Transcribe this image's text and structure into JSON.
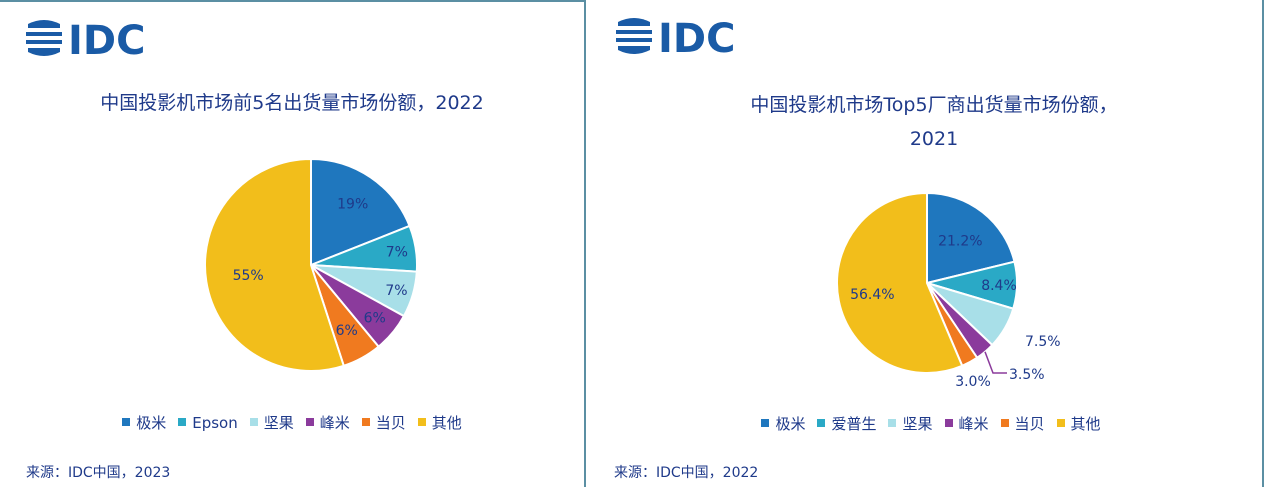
{
  "brand": {
    "logo_text": "IDC",
    "logo_color": "#1a5ba6"
  },
  "colors": {
    "极米": "#1f77be",
    "Epson": "#2aa9c6",
    "爱普生": "#2aa9c6",
    "坚果": "#a8dfe8",
    "峰米": "#8b3b9c",
    "当贝": "#f07a1f",
    "其他": "#f2be1b"
  },
  "panels": [
    {
      "title_lines": [
        "中国投影机市场前5名出货量市场份额，2022"
      ],
      "legend": [
        "极米",
        "Epson",
        "坚果",
        "峰米",
        "当贝",
        "其他"
      ],
      "source": "来源：IDC中国，2023"
    },
    {
      "title_lines": [
        "中国投影机市场Top5厂商出货量市场份额，",
        "2021"
      ],
      "legend": [
        "极米",
        "爱普生",
        "坚果",
        "峰米",
        "当贝",
        "其他"
      ],
      "source": "来源：IDC中国，2022"
    }
  ],
  "chart_data": [
    {
      "type": "pie",
      "title": "中国投影机市场前5名出货量市场份额，2022",
      "categories": [
        "极米",
        "Epson",
        "坚果",
        "峰米",
        "当贝",
        "其他"
      ],
      "values": [
        19,
        7,
        7,
        6,
        6,
        55
      ],
      "labels": [
        "19%",
        "7%",
        "7%",
        "6%",
        "6%",
        "55%"
      ],
      "legend_position": "bottom"
    },
    {
      "type": "pie",
      "title": "中国投影机市场Top5厂商出货量市场份额，2021",
      "categories": [
        "极米",
        "爱普生",
        "坚果",
        "峰米",
        "当贝",
        "其他"
      ],
      "values": [
        21.2,
        8.4,
        7.5,
        3.5,
        3.0,
        56.4
      ],
      "labels": [
        "21.2%",
        "8.4%",
        "7.5%",
        "3.5%",
        "3.0%",
        "56.4%"
      ],
      "legend_position": "bottom"
    }
  ]
}
